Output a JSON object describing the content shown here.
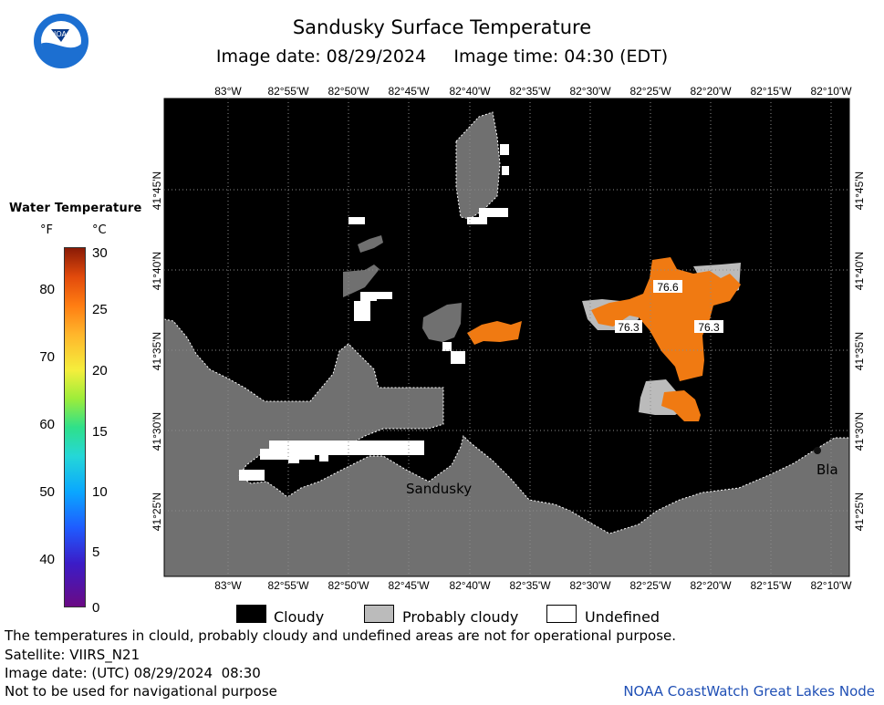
{
  "header": {
    "title": "Sandusky Surface Temperature",
    "date_line": "Image date: 08/29/2024     Image time: 04:30 (EDT)",
    "logo_text": "NOAA"
  },
  "legend": {
    "title": "Water Temperature",
    "unit_f": "°F",
    "unit_c": "°C",
    "f_ticks": [
      "80",
      "70",
      "60",
      "50",
      "40"
    ],
    "c_ticks": [
      "30",
      "25",
      "20",
      "15",
      "10",
      "5",
      "0"
    ],
    "colors": {
      "low": "#6a0a84",
      "mid": "#2fe08a",
      "high": "#8a1b06"
    }
  },
  "map": {
    "lon_labels": [
      "83°W",
      "82°55'W",
      "82°50'W",
      "82°45'W",
      "82°40'W",
      "82°35'W",
      "82°30'W",
      "82°25'W",
      "82°20'W",
      "82°15'W",
      "82°10'W"
    ],
    "lat_labels": [
      "41°45'N",
      "41°40'N",
      "41°35'N",
      "41°30'N",
      "41°25'N"
    ],
    "place_sandusky": "Sandusky",
    "place_bla": "Bla",
    "readings": [
      "76.6",
      "76.3",
      "76.3"
    ],
    "colors": {
      "water_cloudy": "#000000",
      "land": "#707070",
      "probably_cloudy": "#bbbbbb",
      "undefined": "#ffffff",
      "warm_water": "#f07a12"
    }
  },
  "key": {
    "cloudy": "Cloudy",
    "probably_cloudy": "Probably cloudy",
    "undefined": "Undefined"
  },
  "footer": {
    "line1": "The temperatures in clould, probably cloudy and undefined areas are not for operational purpose.",
    "line2": "Satellite: VIIRS_N21",
    "line3": "Image date: (UTC) 08/29/2024  08:30",
    "line4": "Not to be used for navigational purpose",
    "credit": "NOAA CoastWatch Great Lakes Node"
  }
}
